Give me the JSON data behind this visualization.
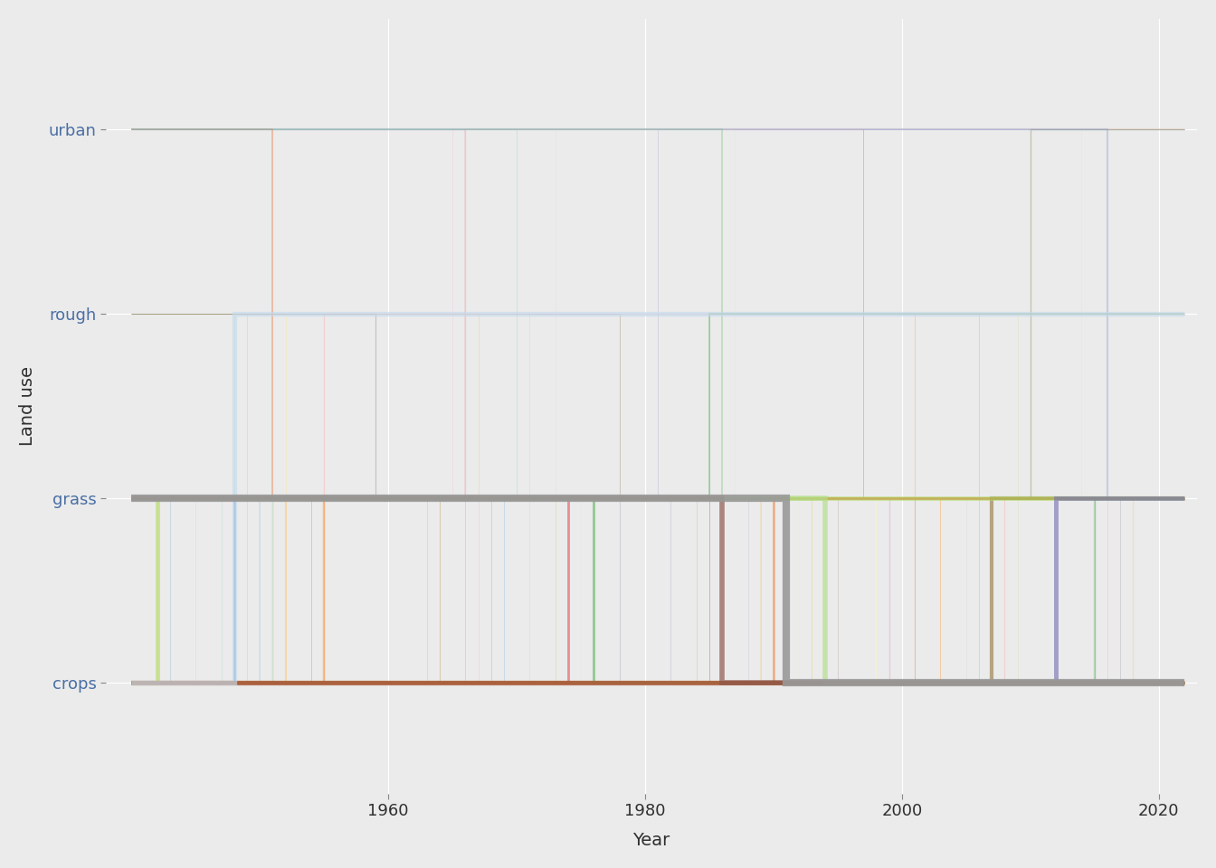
{
  "title": "",
  "xlabel": "Year",
  "ylabel": "Land use",
  "background_color": "#EBEBEB",
  "grid_color": "#FFFFFF",
  "ytick_labels": [
    "crops",
    "grass",
    "rough",
    "urban"
  ],
  "ytick_values": [
    0,
    1,
    2,
    3
  ],
  "xmin": 1940,
  "xmax": 2022,
  "xlim_left": 1938,
  "xlim_right": 2023,
  "xticks": [
    1960,
    1980,
    2000,
    2020
  ],
  "n_vectors": 100,
  "years_start": 1940,
  "years_end": 2022,
  "seed": 42,
  "colors": [
    "#E41A1C",
    "#377EB8",
    "#4DAF4A",
    "#984EA3",
    "#FF7F00",
    "#FFFF33",
    "#A65628",
    "#F781BF",
    "#999999",
    "#66C2A5",
    "#FC8D62",
    "#8DA0CB",
    "#E78AC3",
    "#A6D854",
    "#FFD92F",
    "#E5C494",
    "#B3B3B3",
    "#8DD3C7",
    "#FFFFB3",
    "#BEBADA",
    "#FB8072",
    "#80B1D3",
    "#FDB462",
    "#B3DE69",
    "#FCCDE5",
    "#D9D9D9",
    "#BC80BD",
    "#CCEBC5",
    "#FFED6F",
    "#1F78B4",
    "#33A02C",
    "#E31A1C",
    "#FF7F00",
    "#6A3D9A",
    "#B15928",
    "#A6CEE3",
    "#B2DF8A",
    "#FB9A99",
    "#FDBF6F",
    "#CAB2D6",
    "#FFFF99",
    "#1B9E77",
    "#D95F02",
    "#7570B3",
    "#E7298A",
    "#66A61E",
    "#E6AB02",
    "#A6761D",
    "#666666",
    "#F0027F",
    "#BF5B17",
    "#386CB0",
    "#BEAED4",
    "#FDC086",
    "#FFFF99",
    "#7FC97F",
    "#1F77B4",
    "#FF7F0E",
    "#2CA02C",
    "#D62728",
    "#9467BD",
    "#8C564B",
    "#E377C2",
    "#7F7F7F",
    "#BCBD22",
    "#17BECF",
    "#AEC7E8",
    "#FFBB78",
    "#98DF8A",
    "#FF9896",
    "#C5B0D5",
    "#C49C94",
    "#F7B6D2",
    "#C7C7C7",
    "#DBDB8D",
    "#9EDAE5",
    "#393B79",
    "#637939",
    "#8C6D31",
    "#843C39",
    "#7B4173",
    "#3182BD",
    "#E6550D",
    "#31A354",
    "#756BB1",
    "#636363",
    "#6BAED6",
    "#FD8D3C",
    "#74C476",
    "#9E9AC8",
    "#969696",
    "#9ECAE1",
    "#FDAE6B",
    "#A1D99B",
    "#BCBDDC",
    "#BDBDBD",
    "#C6DBEF",
    "#FDD0A2",
    "#C7E9C0",
    "#DADAEB"
  ]
}
